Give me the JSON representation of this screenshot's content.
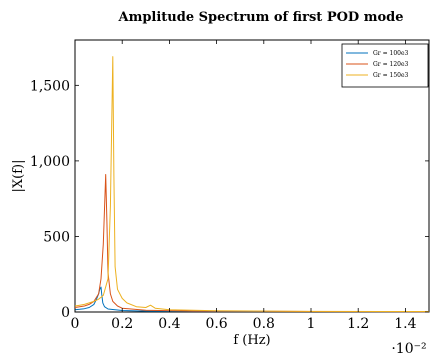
{
  "chart_data": {
    "type": "line",
    "title": "Amplitude Spectrum of first POD mode",
    "xlabel": "f (Hz)",
    "ylabel": "|X(f)|",
    "x_multiplier_label": "·10⁻²",
    "xlim": [
      0,
      1.5
    ],
    "ylim": [
      0,
      1800
    ],
    "x_ticks": [
      0,
      0.2,
      0.4,
      0.6,
      0.8,
      1,
      1.2,
      1.4
    ],
    "x_tick_labels": [
      "0",
      "0.2",
      "0.4",
      "0.6",
      "0.8",
      "1",
      "1.2",
      "1.4"
    ],
    "y_ticks": [
      0,
      500,
      1000,
      1500
    ],
    "y_tick_labels": [
      "0",
      "500",
      "1,000",
      "1,500"
    ],
    "grid": false,
    "legend_position": "top-right",
    "series": [
      {
        "name": "Gr = 100e3",
        "color": "#0072bd",
        "points": [
          [
            0,
            15
          ],
          [
            0.02,
            18
          ],
          [
            0.04,
            22
          ],
          [
            0.06,
            30
          ],
          [
            0.08,
            50
          ],
          [
            0.09,
            80
          ],
          [
            0.1,
            120
          ],
          [
            0.105,
            150
          ],
          [
            0.11,
            165
          ],
          [
            0.113,
            120
          ],
          [
            0.118,
            60
          ],
          [
            0.125,
            35
          ],
          [
            0.14,
            20
          ],
          [
            0.2,
            10
          ],
          [
            0.3,
            6
          ],
          [
            0.5,
            4
          ],
          [
            1.0,
            3
          ],
          [
            1.5,
            2
          ]
        ]
      },
      {
        "name": "Gr = 120e3",
        "color": "#d95319",
        "points": [
          [
            0,
            30
          ],
          [
            0.02,
            35
          ],
          [
            0.04,
            40
          ],
          [
            0.06,
            50
          ],
          [
            0.08,
            70
          ],
          [
            0.1,
            120
          ],
          [
            0.11,
            220
          ],
          [
            0.12,
            450
          ],
          [
            0.13,
            910
          ],
          [
            0.135,
            600
          ],
          [
            0.14,
            260
          ],
          [
            0.15,
            120
          ],
          [
            0.16,
            70
          ],
          [
            0.18,
            40
          ],
          [
            0.2,
            25
          ],
          [
            0.3,
            12
          ],
          [
            0.5,
            6
          ],
          [
            1.0,
            3
          ],
          [
            1.5,
            2
          ]
        ]
      },
      {
        "name": "Gr = 150e3",
        "color": "#edb120",
        "points": [
          [
            0,
            40
          ],
          [
            0.02,
            45
          ],
          [
            0.04,
            50
          ],
          [
            0.06,
            60
          ],
          [
            0.08,
            70
          ],
          [
            0.1,
            85
          ],
          [
            0.12,
            110
          ],
          [
            0.14,
            220
          ],
          [
            0.15,
            700
          ],
          [
            0.16,
            1690
          ],
          [
            0.165,
            900
          ],
          [
            0.17,
            300
          ],
          [
            0.18,
            150
          ],
          [
            0.2,
            90
          ],
          [
            0.22,
            60
          ],
          [
            0.26,
            35
          ],
          [
            0.3,
            30
          ],
          [
            0.32,
            45
          ],
          [
            0.34,
            25
          ],
          [
            0.4,
            15
          ],
          [
            0.6,
            8
          ],
          [
            1.0,
            4
          ],
          [
            1.5,
            3
          ]
        ]
      }
    ]
  }
}
